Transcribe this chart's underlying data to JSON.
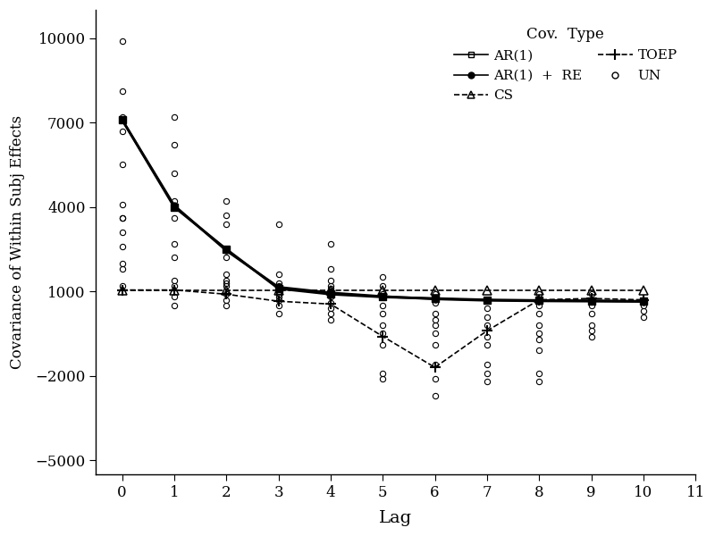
{
  "lags": [
    0,
    1,
    2,
    3,
    4,
    5,
    6,
    7,
    8,
    9,
    10
  ],
  "AR1": [
    7100,
    4000,
    2500,
    1100,
    900,
    800,
    750,
    700,
    680,
    670,
    650
  ],
  "AR1_RE": [
    7100,
    4050,
    2450,
    1150,
    950,
    820,
    730,
    680,
    660,
    650,
    640
  ],
  "CS": [
    1050,
    1050,
    1050,
    1050,
    1050,
    1050,
    1050,
    1050,
    1050,
    1050,
    1050
  ],
  "TOEP": [
    1050,
    1050,
    900,
    650,
    550,
    -600,
    -1700,
    -400,
    700,
    750,
    700
  ],
  "UN_scatter": {
    "0": [
      9900,
      8100,
      7200,
      6700,
      5500,
      4100,
      3600,
      3600,
      3100,
      2600,
      2000,
      1800,
      1200
    ],
    "1": [
      7200,
      6200,
      5200,
      4200,
      3600,
      2700,
      2200,
      1400,
      1200,
      800,
      500
    ],
    "2": [
      4200,
      3700,
      3400,
      2200,
      1600,
      1400,
      1300,
      1200,
      900,
      700,
      500
    ],
    "3": [
      3400,
      1600,
      1300,
      1200,
      1000,
      900,
      800,
      700,
      500,
      200
    ],
    "4": [
      2700,
      1800,
      1400,
      1200,
      1100,
      1000,
      800,
      600,
      400,
      200,
      0
    ],
    "5": [
      1500,
      1200,
      900,
      500,
      200,
      -200,
      -500,
      -900,
      -1900,
      -2100
    ],
    "6": [
      900,
      600,
      200,
      0,
      -200,
      -500,
      -900,
      -1600,
      -2100,
      -2700
    ],
    "7": [
      700,
      400,
      100,
      -200,
      -600,
      -900,
      -1600,
      -1900,
      -2200
    ],
    "8": [
      900,
      500,
      200,
      -200,
      -500,
      -700,
      -1100,
      -1900,
      -2200
    ],
    "9": [
      900,
      500,
      200,
      -200,
      -400,
      -600
    ],
    "10": [
      700,
      500,
      300,
      100
    ]
  },
  "xlim": [
    -0.5,
    11
  ],
  "ylim": [
    -5500,
    11000
  ],
  "yticks": [
    -5000,
    -2000,
    1000,
    4000,
    7000,
    10000
  ],
  "ytick_labels": [
    "-5000",
    "-2000",
    "1000",
    "4000",
    "7000",
    "10000"
  ],
  "xticks": [
    0,
    1,
    2,
    3,
    4,
    5,
    6,
    7,
    8,
    9,
    10,
    11
  ],
  "xtick_labels": [
    "0",
    "1",
    "2",
    "3",
    "4",
    "5",
    "6",
    "7",
    "8",
    "9",
    "10",
    "11"
  ],
  "xlabel": "Lag",
  "ylabel": "Covariance of Within Subj Effects",
  "legend_title": "Cov.  Type",
  "bg_color": "#ffffff"
}
